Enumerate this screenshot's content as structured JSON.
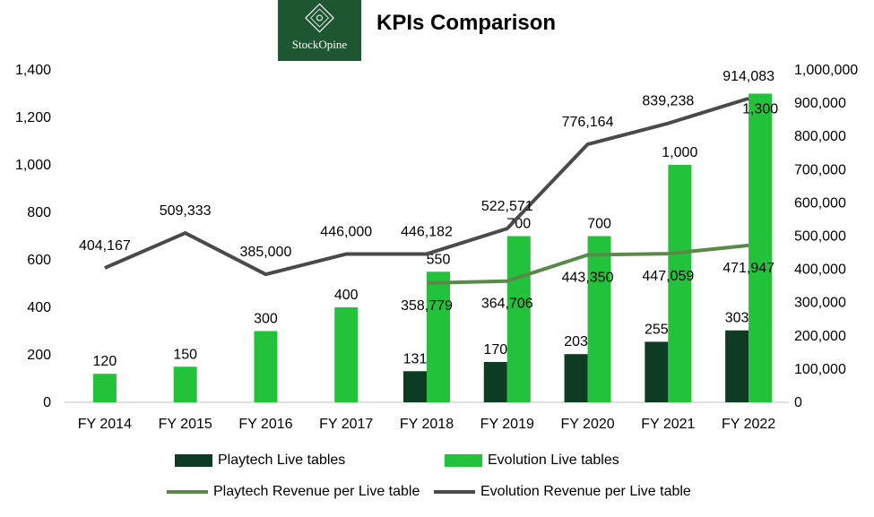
{
  "header": {
    "logo_text": "StockOpine",
    "title": "KPIs Comparison"
  },
  "colors": {
    "playtech_tables": "#0e3b24",
    "evolution_tables": "#22c33a",
    "playtech_revenue": "#5a8a4a",
    "evolution_revenue": "#4a4a4a",
    "logo_bg": "#1e5631",
    "axis": "#bfbfbf"
  },
  "legend": {
    "playtech_tables": "Playtech Live tables",
    "evolution_tables": "Evolution Live tables",
    "playtech_revenue": "Playtech Revenue per Live table",
    "evolution_revenue": "Evolution Revenue per Live table"
  },
  "chart_data": {
    "type": "bar",
    "title": "KPIs Comparison",
    "categories": [
      "FY 2014",
      "FY 2015",
      "FY 2016",
      "FY 2017",
      "FY 2018",
      "FY 2019",
      "FY 2020",
      "FY 2021",
      "FY 2022"
    ],
    "left_axis": {
      "min": 0,
      "max": 1400,
      "ticks": [
        "0",
        "200",
        "400",
        "600",
        "800",
        "1,000",
        "1,200",
        "1,400"
      ]
    },
    "right_axis": {
      "min": 0,
      "max": 1000000,
      "ticks": [
        "0",
        "100,000",
        "200,000",
        "300,000",
        "400,000",
        "500,000",
        "600,000",
        "700,000",
        "800,000",
        "900,000",
        "1,000,000"
      ]
    },
    "grid": false,
    "legend_position": "bottom",
    "bar_series": [
      {
        "name": "Playtech Live tables",
        "axis": "left",
        "values": [
          null,
          null,
          null,
          null,
          131,
          170,
          203,
          255,
          303
        ],
        "labels": [
          "",
          "",
          "",
          "",
          "131",
          "170",
          "203",
          "255",
          "303"
        ]
      },
      {
        "name": "Evolution Live tables",
        "axis": "left",
        "values": [
          120,
          150,
          300,
          400,
          550,
          700,
          700,
          1000,
          1300
        ],
        "labels": [
          "120",
          "150",
          "300",
          "400",
          "550",
          "700",
          "700",
          "1,000",
          "1,300"
        ]
      }
    ],
    "line_series": [
      {
        "name": "Playtech Revenue per Live table",
        "axis": "right",
        "values": [
          null,
          null,
          null,
          null,
          358779,
          364706,
          443350,
          447059,
          471947
        ],
        "labels": [
          "",
          "",
          "",
          "",
          "358,779",
          "364,706",
          "443,350",
          "447,059",
          "471,947"
        ]
      },
      {
        "name": "Evolution Revenue per Live table",
        "axis": "right",
        "values": [
          404167,
          509333,
          385000,
          446000,
          446182,
          522571,
          776164,
          839238,
          914083
        ],
        "labels": [
          "404,167",
          "509,333",
          "385,000",
          "446,000",
          "446,182",
          "522,571",
          "776,164",
          "839,238",
          "914,083"
        ]
      }
    ]
  }
}
